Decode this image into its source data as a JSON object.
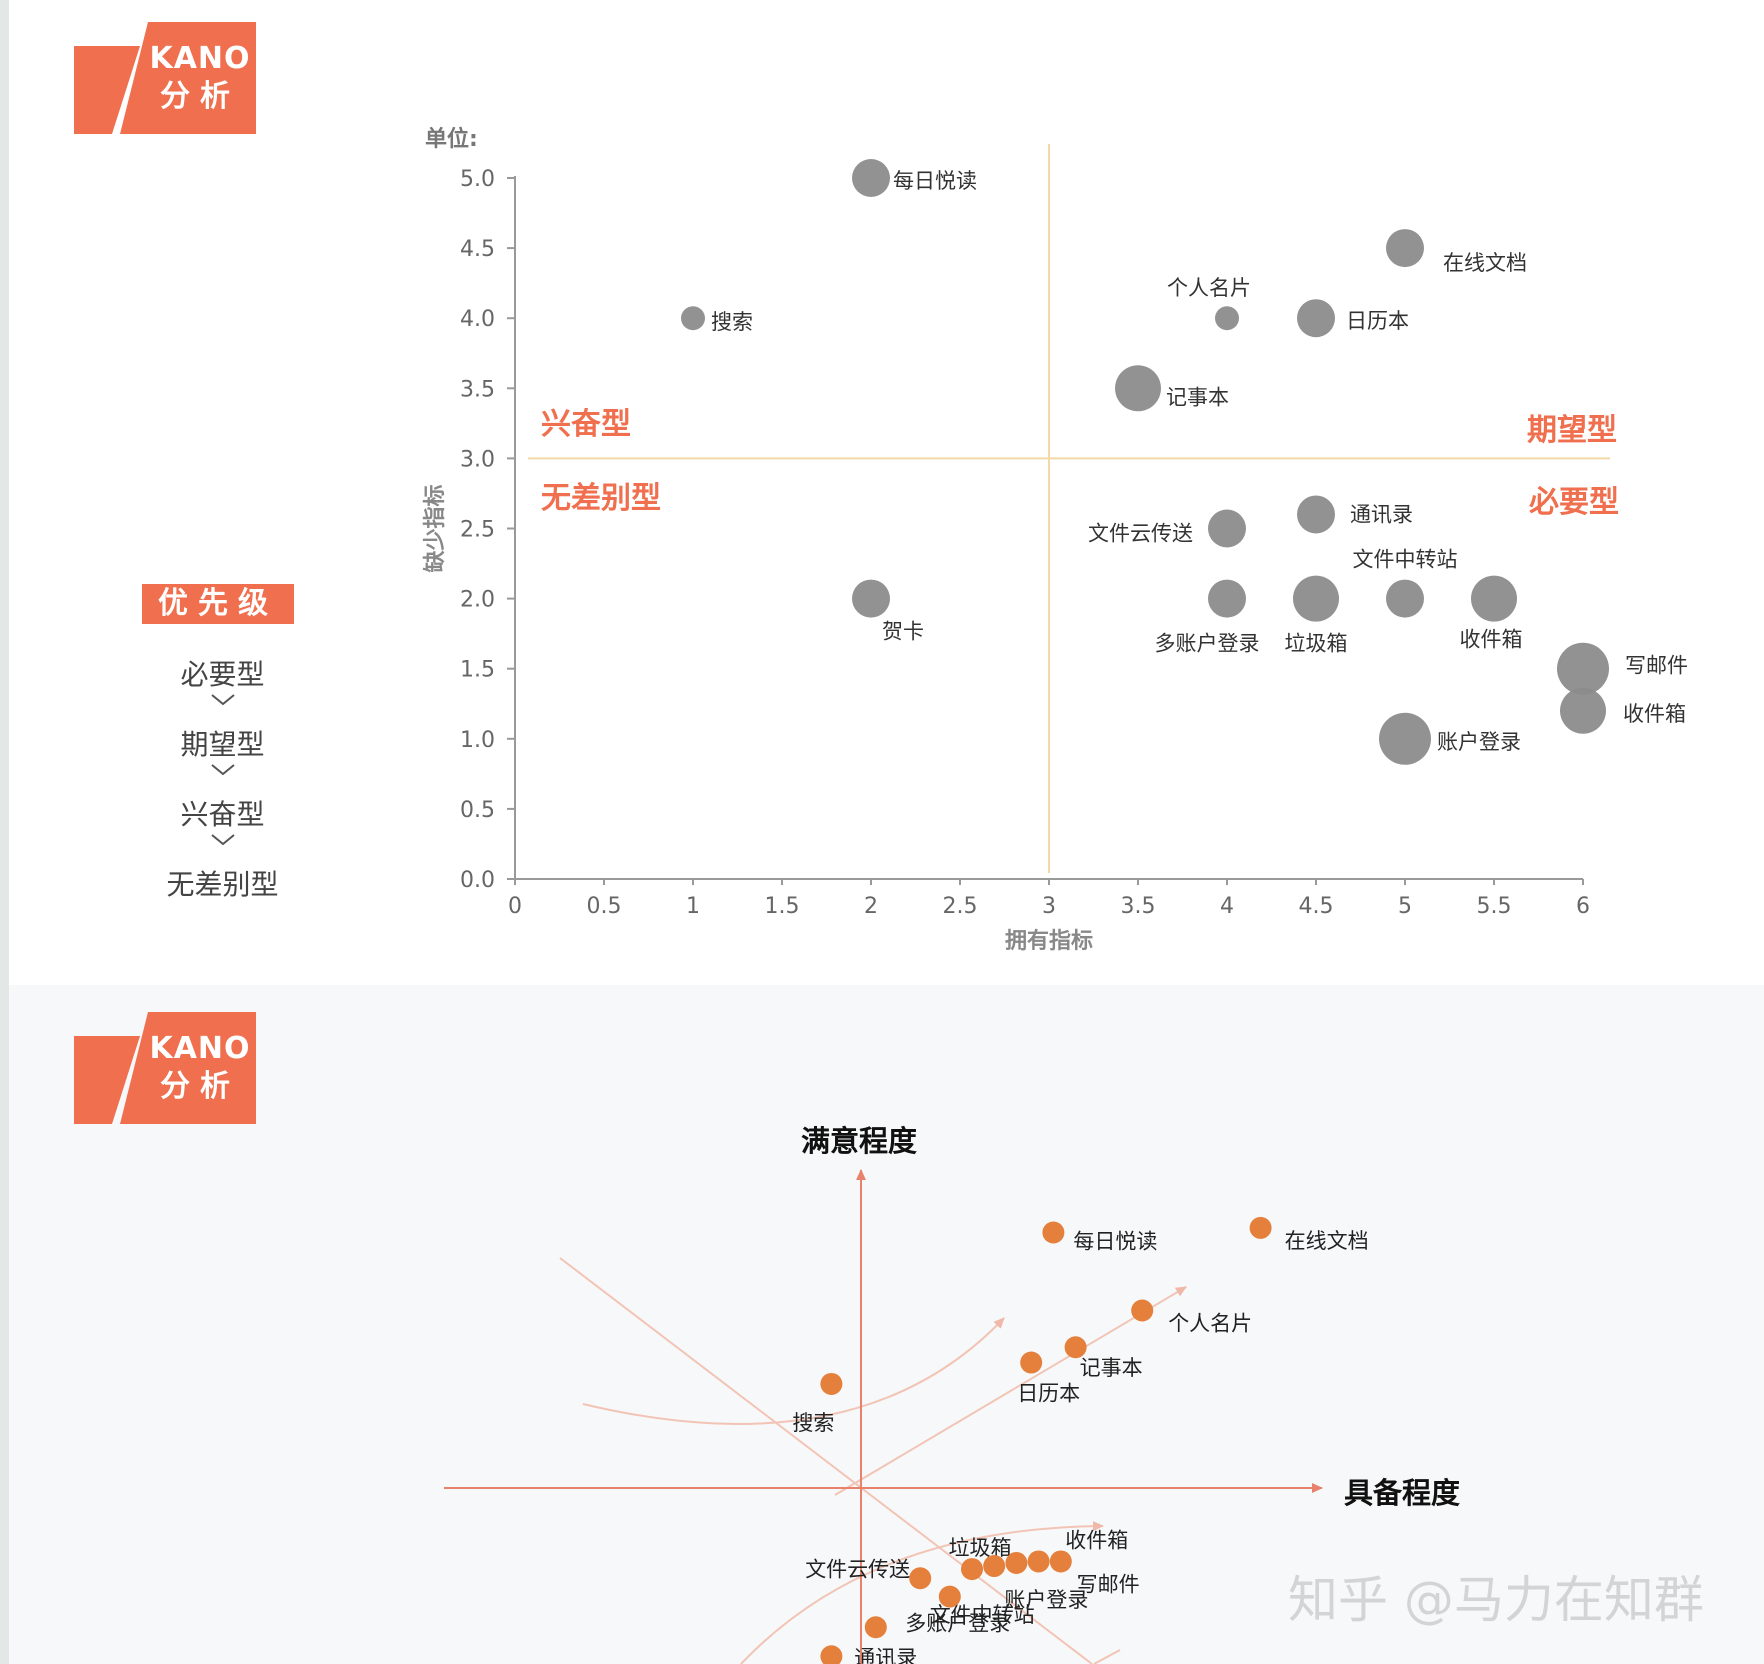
{
  "logo": {
    "line1": "KANO",
    "line2": "分析",
    "color": "#ef6f4e"
  },
  "priority": {
    "title": "优先级",
    "items": [
      "必要型",
      "期望型",
      "兴奋型",
      "无差别型"
    ]
  },
  "chart_data": [
    {
      "type": "scatter",
      "unit_label": "单位:",
      "xlabel": "拥有指标",
      "ylabel": "缺少指标",
      "xlim": [
        0,
        6
      ],
      "ylim": [
        0,
        5
      ],
      "x_ticks": [
        "0",
        "0.5",
        "1",
        "1.5",
        "2",
        "2.5",
        "3",
        "3.5",
        "4",
        "4.5",
        "5",
        "5.5",
        "6"
      ],
      "y_ticks": [
        "0.0",
        "0.5",
        "1.0",
        "1.5",
        "2.0",
        "2.5",
        "3.0",
        "3.5",
        "4.0",
        "4.5",
        "5.0"
      ],
      "divider_x": 3,
      "divider_y": 3,
      "quadrant_labels": [
        "兴奋型",
        "期望型",
        "无差别型",
        "必要型"
      ],
      "points": [
        {
          "name": "每日悦读",
          "x": 2,
          "y": 5.0,
          "size": "medium"
        },
        {
          "name": "搜索",
          "x": 1,
          "y": 4.0,
          "size": "small"
        },
        {
          "name": "在线文档",
          "x": 5,
          "y": 4.5,
          "size": "medium"
        },
        {
          "name": "个人名片",
          "x": 4,
          "y": 4.0,
          "size": "small"
        },
        {
          "name": "日历本",
          "x": 4.5,
          "y": 4.0,
          "size": "medium"
        },
        {
          "name": "记事本",
          "x": 3.5,
          "y": 3.5,
          "size": "large"
        },
        {
          "name": "文件云传送",
          "x": 4,
          "y": 2.5,
          "size": "medium"
        },
        {
          "name": "通讯录",
          "x": 4.5,
          "y": 2.6,
          "size": "medium"
        },
        {
          "name": "文件中转站",
          "x": 5,
          "y": 2.0,
          "size": "medium"
        },
        {
          "name": "贺卡",
          "x": 2,
          "y": 2.0,
          "size": "medium"
        },
        {
          "name": "多账户登录",
          "x": 4,
          "y": 2.0,
          "size": "medium"
        },
        {
          "name": "垃圾箱",
          "x": 4.5,
          "y": 2.0,
          "size": "large"
        },
        {
          "name": "收件箱",
          "x": 5.5,
          "y": 2.0,
          "size": "large"
        },
        {
          "name": "写邮件",
          "x": 6,
          "y": 1.5,
          "size": "xlarge"
        },
        {
          "name": "收件箱",
          "x": 6,
          "y": 1.2,
          "size": "large"
        },
        {
          "name": "账户登录",
          "x": 5,
          "y": 1.0,
          "size": "xlarge"
        }
      ],
      "point_color": "#8c8c8c",
      "accent_color": "#ef6f4e",
      "divider_color": "#f2d9a6"
    },
    {
      "type": "scatter",
      "xlabel": "具备程度",
      "ylabel": "满意程度",
      "points": [
        {
          "name": "每日悦读",
          "x": 1.3,
          "y": 1.67
        },
        {
          "name": "在线文档",
          "x": 2.7,
          "y": 1.7
        },
        {
          "name": "个人名片",
          "x": 1.9,
          "y": 1.16
        },
        {
          "name": "记事本",
          "x": 1.45,
          "y": 0.92
        },
        {
          "name": "日历本",
          "x": 1.15,
          "y": 0.82
        },
        {
          "name": "搜索",
          "x": -0.2,
          "y": 0.68
        },
        {
          "name": "垃圾箱",
          "x": 0.75,
          "y": -0.53
        },
        {
          "name": "收件箱",
          "x": 1.35,
          "y": -0.48
        },
        {
          "name": "文件云传送",
          "x": 0.4,
          "y": -0.59
        },
        {
          "name": "写邮件",
          "x": 1.2,
          "y": -0.48
        },
        {
          "name": "账户登录",
          "x": 1.05,
          "y": -0.49
        },
        {
          "name": "文件中转站",
          "x": 0.9,
          "y": -0.51
        },
        {
          "name": "多账户登录",
          "x": 0.6,
          "y": -0.71
        },
        {
          "name": "通讯录",
          "x": 0.1,
          "y": -0.91
        },
        {
          "name": "",
          "x": -0.2,
          "y": -1.1
        }
      ],
      "point_color": "#e57f3c",
      "axis_color": "#e8826c"
    }
  ],
  "watermark": "知乎 @马力在知群"
}
